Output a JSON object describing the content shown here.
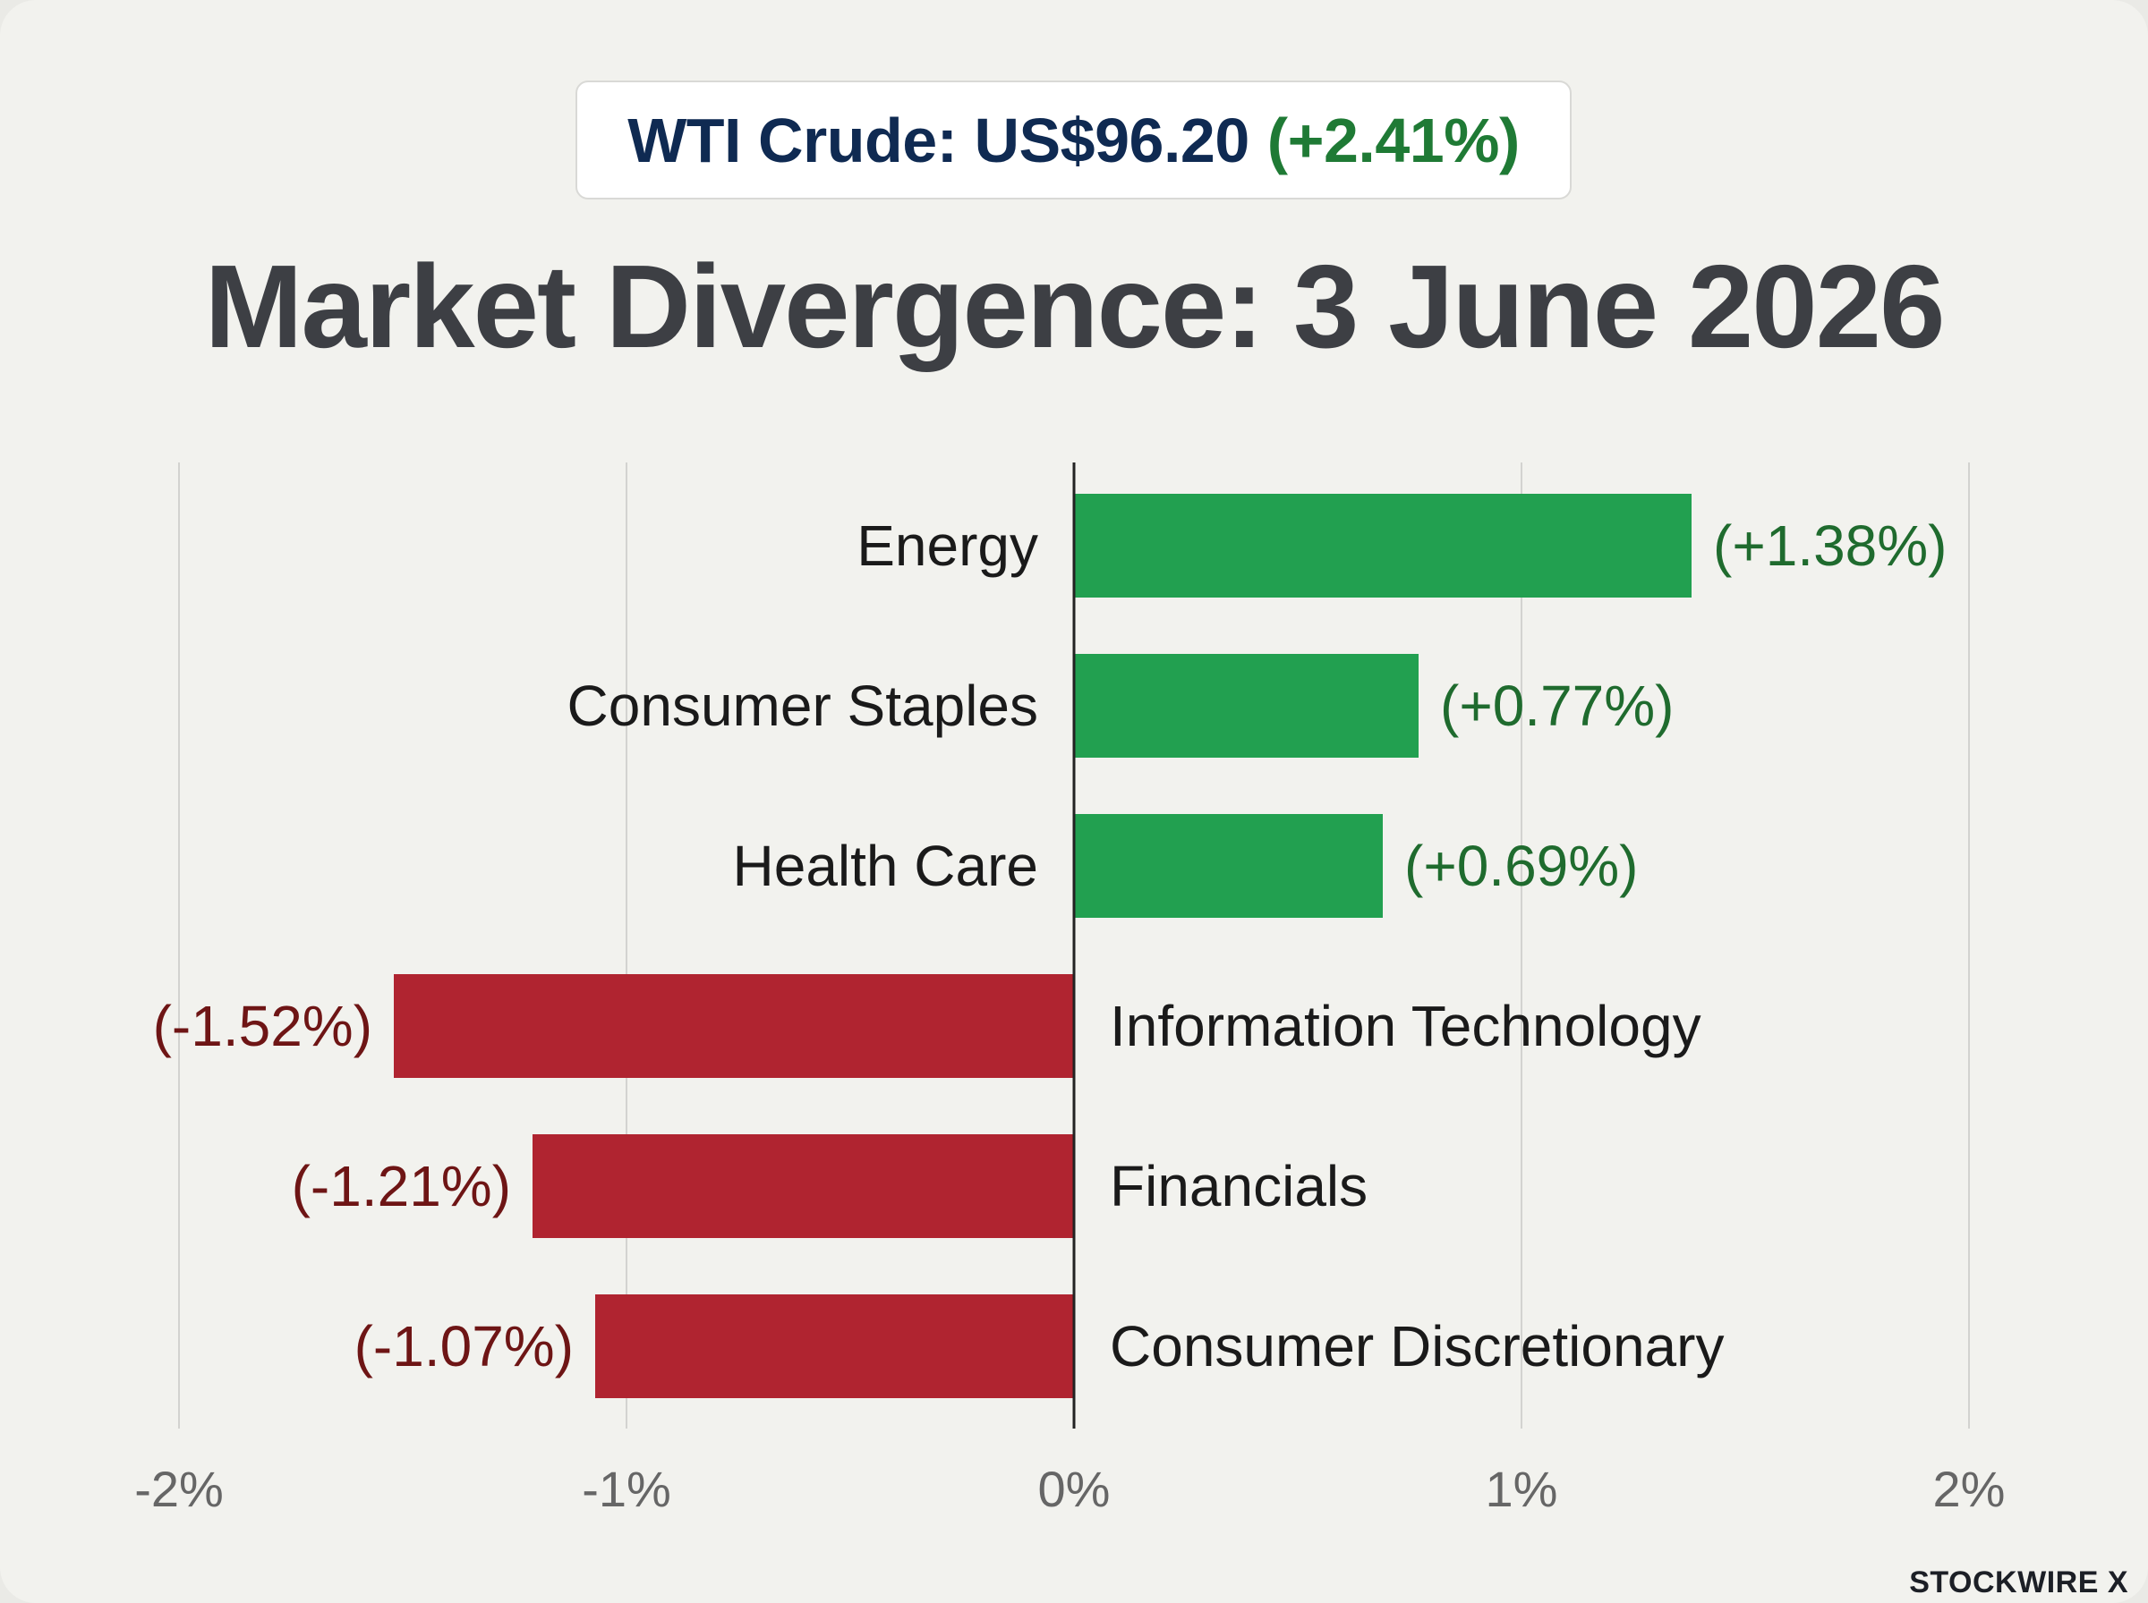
{
  "header": {
    "price_label": "WTI Crude: US$96.20",
    "price_change": "(+2.41%)"
  },
  "title": "Market Divergence: 3 June 2026",
  "brand": "STOCKWIRE X",
  "colors": {
    "positive_bar": "#22a050",
    "negative_bar": "#b02430",
    "positive_text": "#1f6b2e",
    "negative_text": "#6e1515",
    "grid": "#d3d3d0",
    "axis": "#222222",
    "category_text": "#1a1a1a",
    "tick_text": "#666666"
  },
  "chart_data": {
    "type": "bar",
    "orientation": "horizontal",
    "title": "Market Divergence: 3 June 2026",
    "categories": [
      "Energy",
      "Consumer Staples",
      "Health Care",
      "Information Technology",
      "Financials",
      "Consumer Discretionary"
    ],
    "values": [
      1.38,
      0.77,
      0.69,
      -1.52,
      -1.21,
      -1.07
    ],
    "value_labels": [
      "(+1.38%)",
      "(+0.77%)",
      "(+0.69%)",
      "(-1.52%)",
      "(-1.21%)",
      "(-1.07%)"
    ],
    "xlim": [
      -2,
      2
    ],
    "xticks": [
      -2,
      -1,
      0,
      1,
      2
    ],
    "xtick_labels": [
      "-2%",
      "-1%",
      "0%",
      "1%",
      "2%"
    ],
    "grid": true,
    "xlabel": "",
    "ylabel": ""
  }
}
